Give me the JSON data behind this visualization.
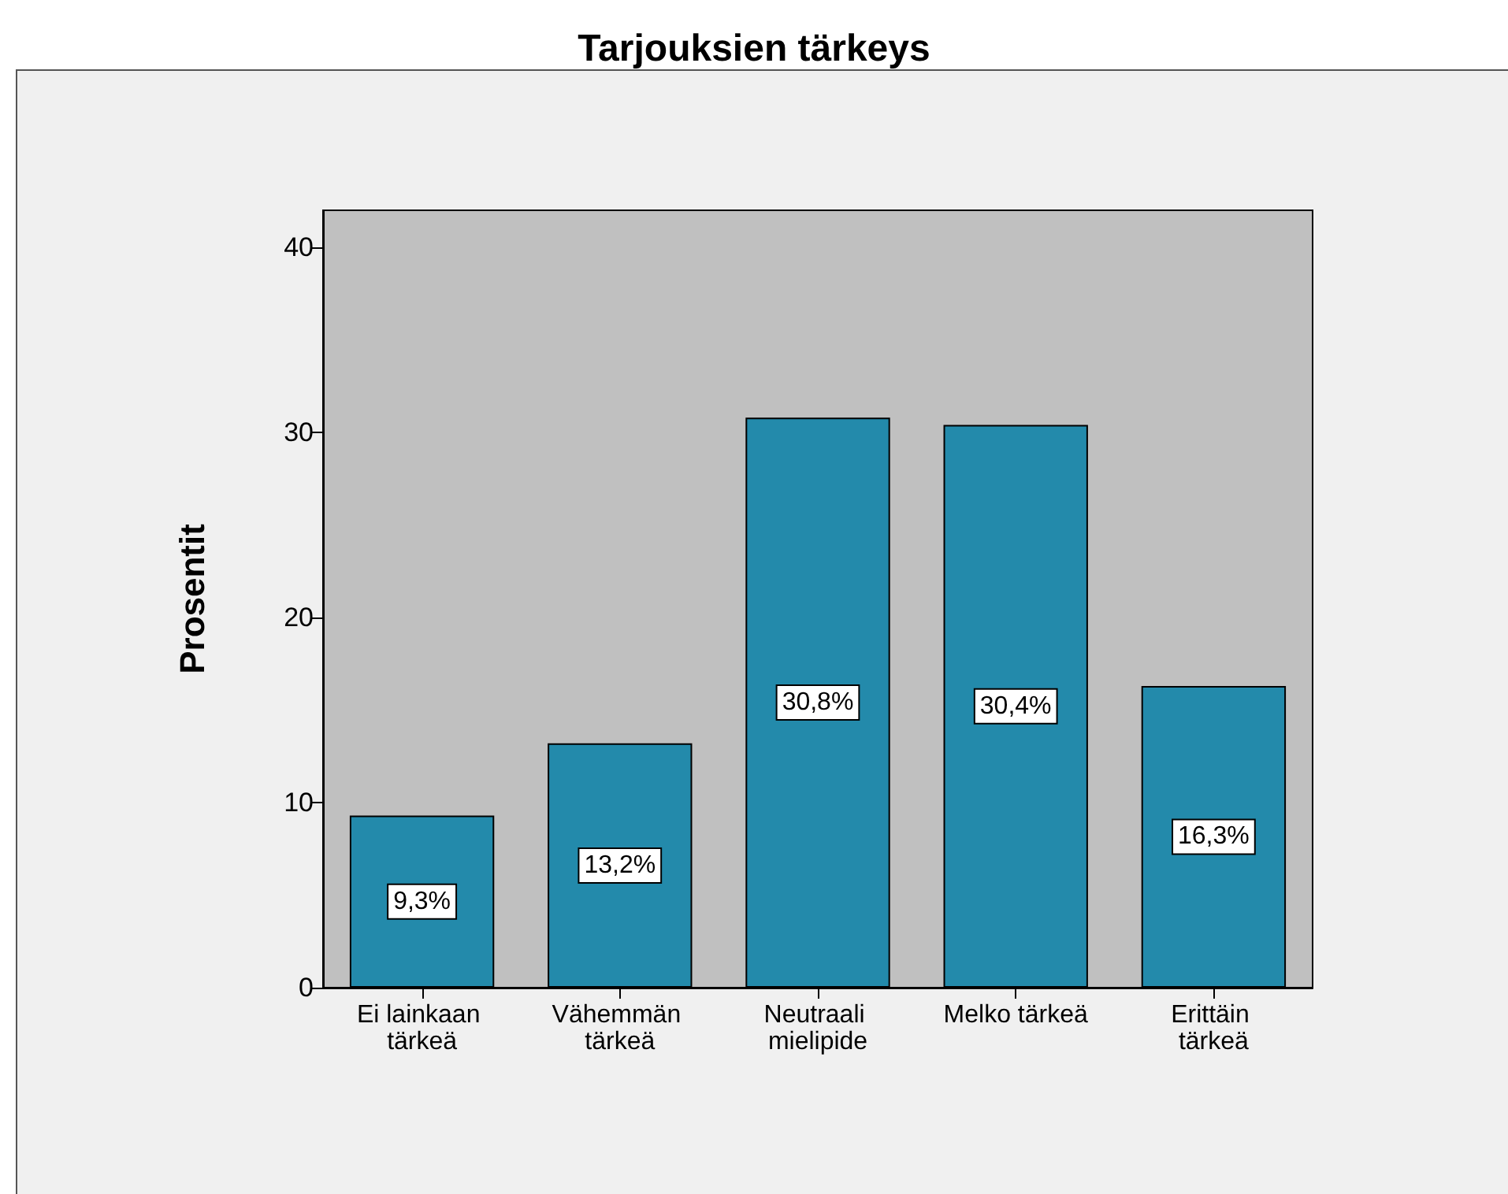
{
  "chart_data": {
    "type": "bar",
    "title": "Tarjouksien tärkeys",
    "ylabel": "Prosentit",
    "categories": [
      "Ei lainkaan tärkeä",
      "Vähemmän tärkeä",
      "Neutraali mielipide",
      "Melko tärkeä",
      "Erittäin tärkeä"
    ],
    "values": [
      9.3,
      13.2,
      30.8,
      30.4,
      16.3
    ],
    "color": "#238aab",
    "value_labels": [
      "9,3%",
      "13,2%",
      "30,8%",
      "30,4%",
      "16,3%"
    ],
    "ylim": [
      0,
      42
    ],
    "yticks": [
      0,
      10,
      20,
      30,
      40
    ],
    "grid": false
  }
}
